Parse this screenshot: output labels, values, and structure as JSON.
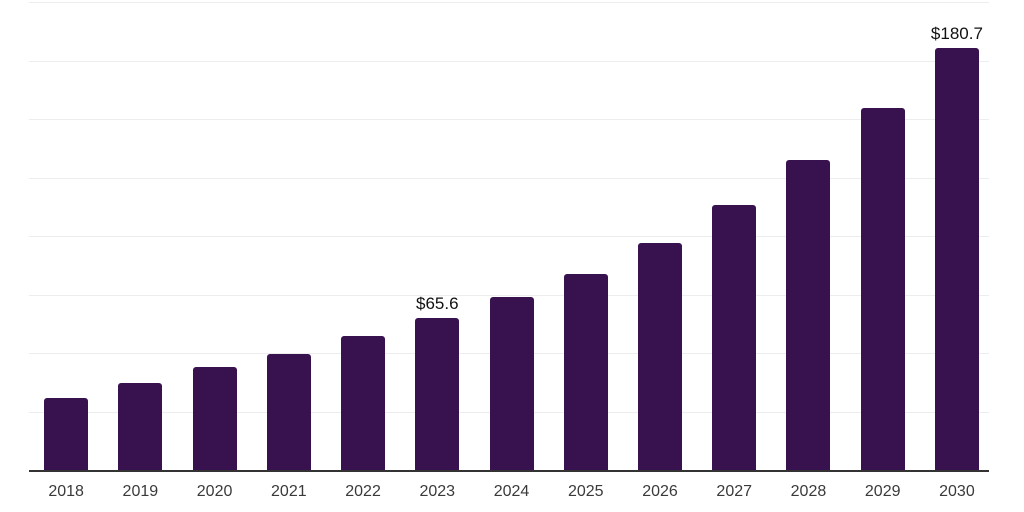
{
  "chart_data": {
    "type": "bar",
    "title": "",
    "xlabel": "",
    "ylabel": "",
    "categories": [
      "2018",
      "2019",
      "2020",
      "2021",
      "2022",
      "2023",
      "2024",
      "2025",
      "2026",
      "2027",
      "2028",
      "2029",
      "2030"
    ],
    "values": [
      31.3,
      37.8,
      44.4,
      49.9,
      57.7,
      65.6,
      74.5,
      84.2,
      97.6,
      113.7,
      133.0,
      155.1,
      180.7
    ],
    "value_labels": {
      "2023": "$65.6",
      "2030": "$180.7"
    },
    "ylim": [
      0,
      200
    ],
    "gridline_step": 25,
    "grid": true,
    "legend_position": "none",
    "colors": {
      "bar": "#38124E",
      "grid": "#EDEDED",
      "axis": "#333333",
      "tick_label": "#3A3A3A",
      "value_label": "#111111",
      "background": "#FFFFFF"
    }
  }
}
